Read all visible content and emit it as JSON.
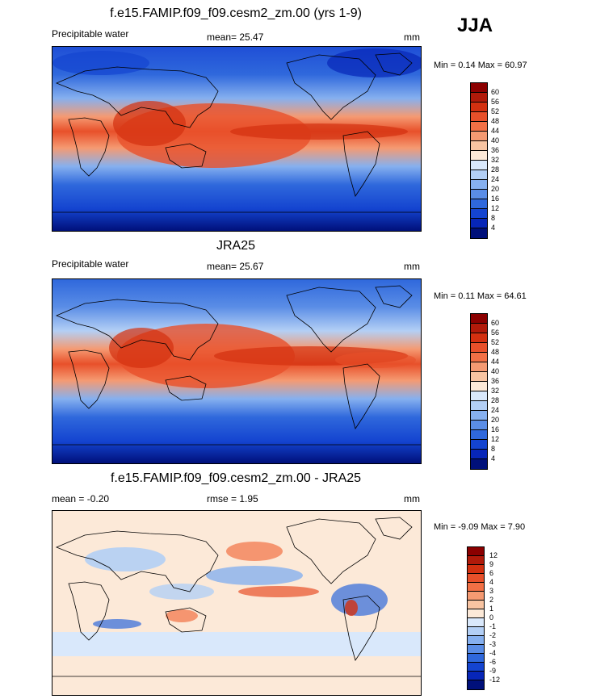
{
  "season": "JJA",
  "panels": [
    {
      "title": "f.e15.FAMIP.f09_f09.cesm2_zm.00 (yrs 1-9)",
      "left_label": "Precipitable water",
      "mean_label": "mean=  25.47",
      "units": "mm",
      "minmax": "Min =  0.14 Max =  60.97",
      "colorbar_labels": [
        "60",
        "56",
        "52",
        "48",
        "44",
        "40",
        "36",
        "32",
        "28",
        "24",
        "20",
        "16",
        "12",
        "8",
        "4"
      ],
      "colorbar_colors": [
        "#8b0000",
        "#b11a0a",
        "#d33010",
        "#e8502a",
        "#f27045",
        "#f59a72",
        "#f8c4a2",
        "#fce9d8",
        "#d9e8fb",
        "#b3cff5",
        "#86b0ef",
        "#5a8de6",
        "#2f68dc",
        "#1444d0",
        "#0726b8",
        "#00107a"
      ]
    },
    {
      "title": "JRA25",
      "left_label": "Precipitable water",
      "mean_label": "mean=  25.67",
      "units": "mm",
      "minmax": "Min =  0.11 Max =  64.61",
      "colorbar_labels": [
        "60",
        "56",
        "52",
        "48",
        "44",
        "40",
        "36",
        "32",
        "28",
        "24",
        "20",
        "16",
        "12",
        "8",
        "4"
      ],
      "colorbar_colors": [
        "#8b0000",
        "#b11a0a",
        "#d33010",
        "#e8502a",
        "#f27045",
        "#f59a72",
        "#f8c4a2",
        "#fce9d8",
        "#d9e8fb",
        "#b3cff5",
        "#86b0ef",
        "#5a8de6",
        "#2f68dc",
        "#1444d0",
        "#0726b8",
        "#00107a"
      ]
    },
    {
      "title": "f.e15.FAMIP.f09_f09.cesm2_zm.00 - JRA25",
      "left_label": "mean =  -0.20",
      "mean_label": "rmse =   1.95",
      "units": "mm",
      "minmax": "Min =  -9.09 Max =   7.90",
      "colorbar_labels": [
        "12",
        "9",
        "6",
        "4",
        "3",
        "2",
        "1",
        "0",
        "-1",
        "-2",
        "-3",
        "-4",
        "-6",
        "-9",
        "-12"
      ],
      "colorbar_colors": [
        "#8b0000",
        "#b11a0a",
        "#d33010",
        "#e8502a",
        "#f27045",
        "#f59a72",
        "#f8c4a2",
        "#fce9d8",
        "#d9e8fb",
        "#b3cff5",
        "#86b0ef",
        "#5a8de6",
        "#2f68dc",
        "#1444d0",
        "#0726b8",
        "#00107a"
      ]
    }
  ]
}
